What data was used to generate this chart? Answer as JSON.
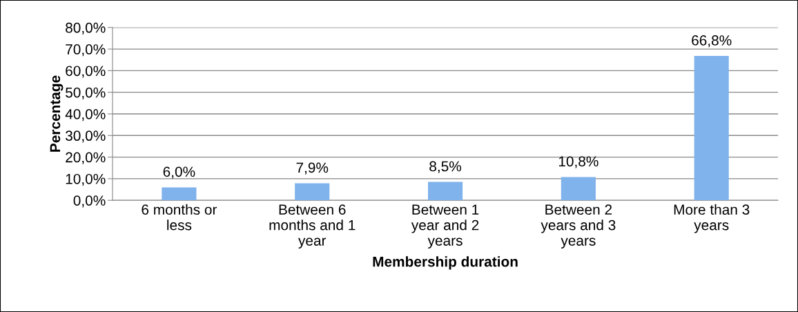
{
  "chart_data": {
    "type": "bar",
    "xlabel": "Membership duration",
    "ylabel": "Percentage",
    "categories": [
      "6 months or less",
      "Between 6 months and 1 year",
      "Between 1 year and 2 years",
      "Between 2 years and 3 years",
      "More than 3 years"
    ],
    "values": [
      6.0,
      7.9,
      8.5,
      10.8,
      66.8
    ],
    "value_labels": [
      "6,0%",
      "7,9%",
      "8,5%",
      "10,8%",
      "66,8%"
    ],
    "color": "#80b2ec",
    "ylim": [
      0,
      80
    ],
    "yticks": [
      {
        "value": 0,
        "label": "0,0%"
      },
      {
        "value": 10,
        "label": "10,0%"
      },
      {
        "value": 20,
        "label": "20,0%"
      },
      {
        "value": 30,
        "label": "30,0%"
      },
      {
        "value": 40,
        "label": "40,0%"
      },
      {
        "value": 50,
        "label": "50,0%"
      },
      {
        "value": 60,
        "label": "60,0%"
      },
      {
        "value": 70,
        "label": "70,0%"
      },
      {
        "value": 80,
        "label": "80,0%"
      }
    ],
    "grid": "y",
    "legend": false
  }
}
